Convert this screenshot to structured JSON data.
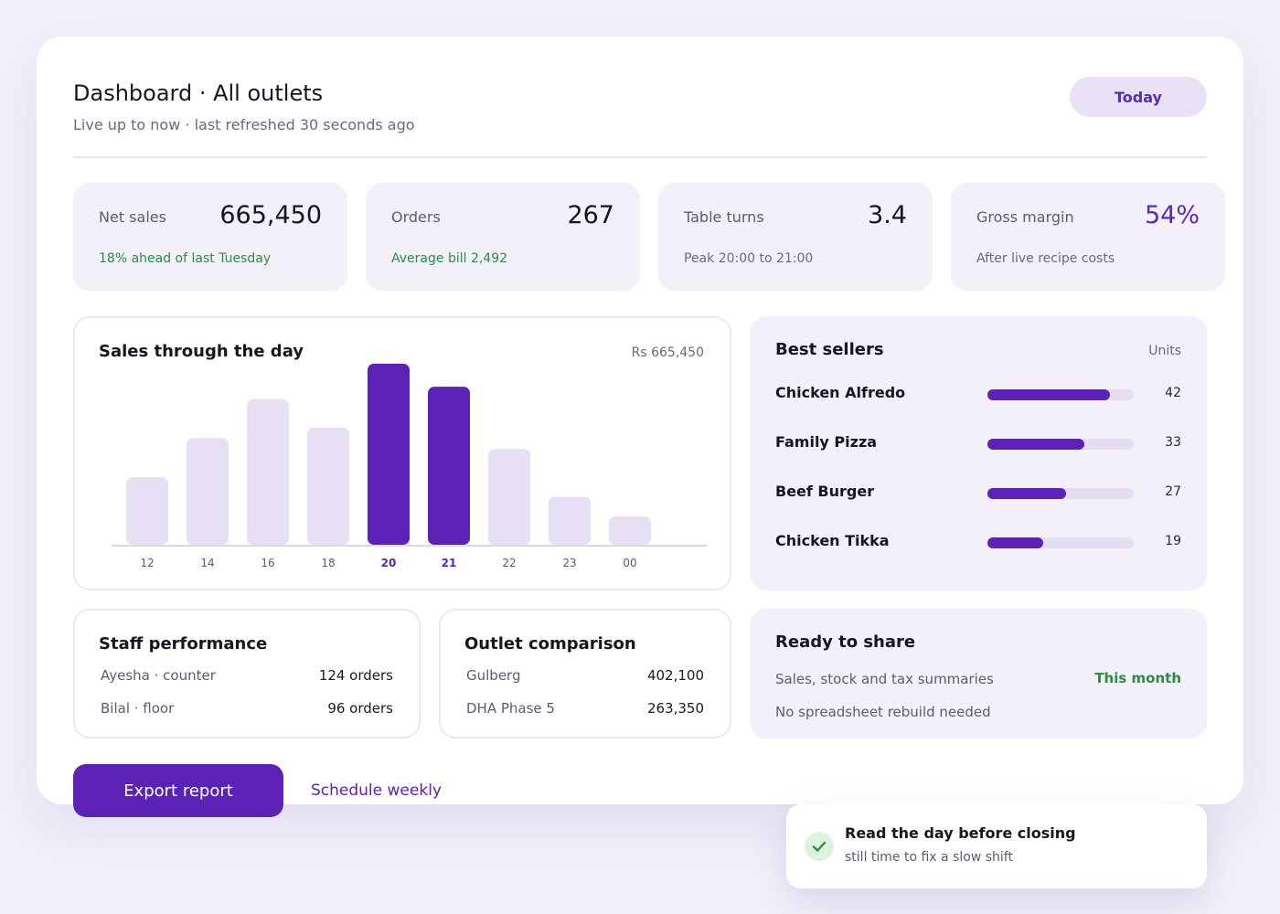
{
  "header": {
    "title": "Dashboard · All outlets",
    "subtitle": "Live up to now · last refreshed 30 seconds ago",
    "period_button": "Today"
  },
  "kpis": [
    {
      "label": "Net sales",
      "value": "665,450",
      "note": "18% ahead of last Tuesday"
    },
    {
      "label": "Orders",
      "value": "267",
      "note": "Average bill 2,492"
    },
    {
      "label": "Table turns",
      "value": "3.4",
      "note": "Peak 20:00 to 21:00"
    },
    {
      "label": "Gross margin",
      "value": "54%",
      "note": "After live recipe costs"
    }
  ],
  "sales_chart": {
    "title": "Sales through the day",
    "total": "Rs 665,450"
  },
  "chart_data": {
    "type": "bar",
    "title": "Sales through the day",
    "categories": [
      "12",
      "14",
      "16",
      "18",
      "20",
      "21",
      "22",
      "23",
      "00"
    ],
    "values": [
      38,
      60,
      82,
      66,
      102,
      89,
      54,
      27,
      16
    ],
    "highlighted": [
      "20",
      "21"
    ],
    "ylim": [
      0,
      105
    ],
    "colors": {
      "bar": "#e7dff4",
      "highlight": "#5b22b5",
      "tick": "#5e5a70",
      "tick_highlight": "#5b22b5",
      "axis": "#dcd8e4"
    }
  },
  "best_sellers": {
    "title": "Best sellers",
    "unit_label": "Units",
    "max": 50,
    "items": [
      {
        "name": "Chicken Alfredo",
        "value": "42",
        "units": 42
      },
      {
        "name": "Family Pizza",
        "value": "33",
        "units": 33
      },
      {
        "name": "Beef Burger",
        "value": "27",
        "units": 27
      },
      {
        "name": "Chicken Tikka",
        "value": "19",
        "units": 19
      }
    ]
  },
  "staff": {
    "title": "Staff performance",
    "rows": [
      {
        "name": "Ayesha · counter",
        "value": "124 orders"
      },
      {
        "name": "Bilal · floor",
        "value": "96 orders"
      }
    ]
  },
  "outlets": {
    "title": "Outlet comparison",
    "rows": [
      {
        "name": "Gulberg",
        "value": "402,100"
      },
      {
        "name": "DHA Phase 5",
        "value": "263,350"
      }
    ]
  },
  "share": {
    "title": "Ready to share",
    "line1": "Sales, stock and tax summaries",
    "period": "This month",
    "line2": "No spreadsheet rebuild needed"
  },
  "actions": {
    "export_label": "Export report",
    "schedule_label": "Schedule weekly"
  },
  "toast": {
    "title": "Read the day before closing",
    "subtitle": "still time to fix a slow shift",
    "icon": "check-icon"
  },
  "colors": {
    "accent": "#5b22b5",
    "positive": "#2e8a45",
    "surface": "#f3f0fa"
  }
}
